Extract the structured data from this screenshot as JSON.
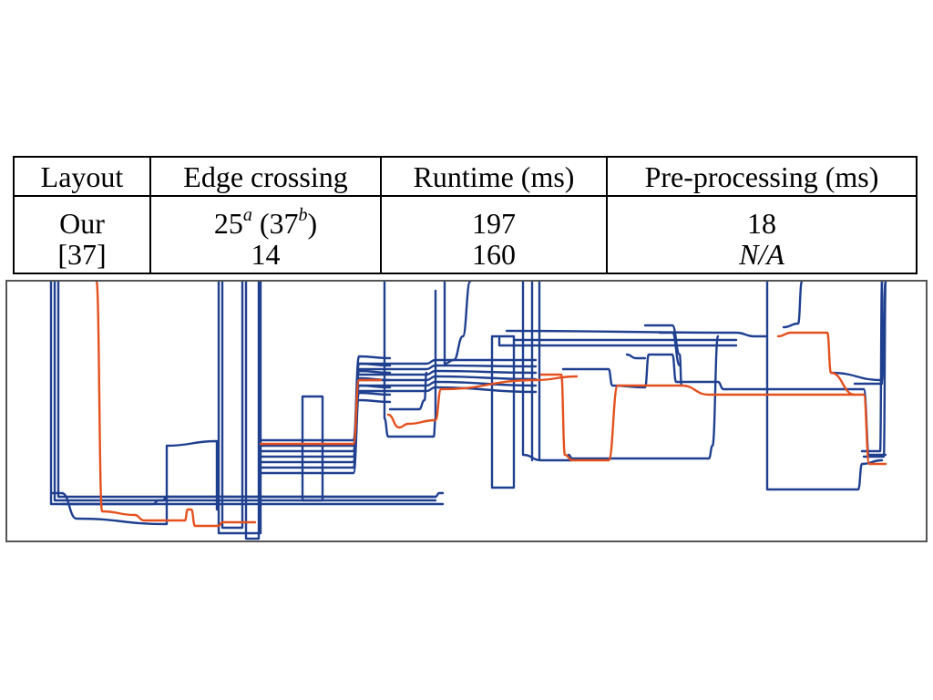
{
  "table": {
    "headers": [
      "Layout",
      "Edge crossing",
      "Runtime (ms)",
      "Pre-processing (ms)"
    ],
    "rows": [
      {
        "layout": "Our",
        "edge_crossing": {
          "value": "25",
          "sup1": "a",
          "paren_open": " (37",
          "sup2": "b",
          "paren_close": ")"
        },
        "runtime": "197",
        "preprocessing": "18"
      },
      {
        "layout": "[37]",
        "edge_crossing_text": "14",
        "runtime": "160",
        "preprocessing": "N/A"
      }
    ]
  },
  "figure": {
    "type": "storyline-visualization",
    "colors": {
      "storyline_primary": "#1f3f8f",
      "storyline_highlight": "#e4501e",
      "frame": "#555555"
    }
  }
}
